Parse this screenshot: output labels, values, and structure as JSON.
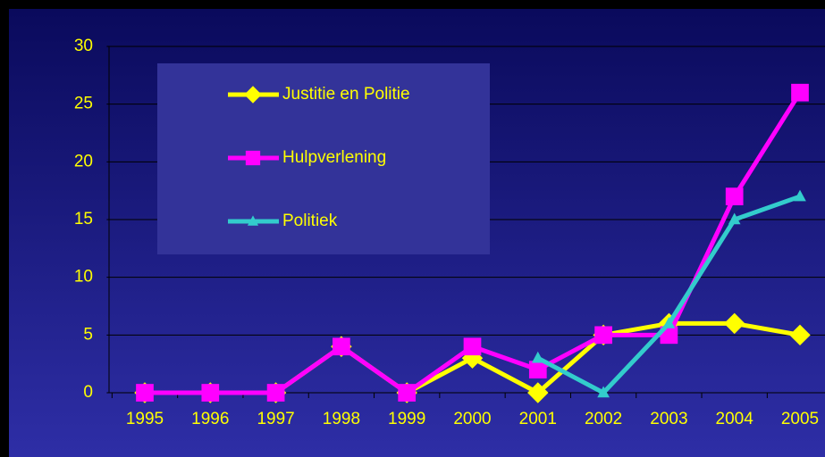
{
  "chart_data": {
    "type": "line",
    "categories": [
      "1995",
      "1996",
      "1997",
      "1998",
      "1999",
      "2000",
      "2001",
      "2002",
      "2003",
      "2004",
      "2005"
    ],
    "series": [
      {
        "name": "Justitie en Politie",
        "color": "#ffff00",
        "marker": "diamond",
        "values": [
          0,
          0,
          0,
          4,
          0,
          3,
          0,
          5,
          6,
          6,
          5
        ]
      },
      {
        "name": "Hulpverlening",
        "color": "#ff00ff",
        "marker": "square",
        "values": [
          0,
          0,
          0,
          4,
          0,
          4,
          2,
          5,
          5,
          17,
          26
        ]
      },
      {
        "name": "Politiek",
        "color": "#33cccc",
        "marker": "triangle",
        "values": [
          null,
          null,
          null,
          null,
          null,
          null,
          3,
          0,
          6,
          15,
          17
        ]
      }
    ],
    "ylim": [
      0,
      30
    ],
    "yticks": [
      0,
      5,
      10,
      15,
      20,
      25,
      30
    ],
    "grid": true,
    "legend": "upper left"
  }
}
